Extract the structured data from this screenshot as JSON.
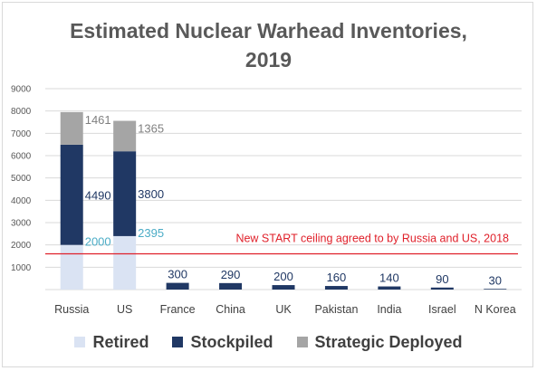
{
  "chart_data": {
    "type": "bar",
    "stacked": true,
    "title": "Estimated Nuclear Warhead Inventories, 2019",
    "title_lines": [
      "Estimated Nuclear Warhead Inventories,",
      "2019"
    ],
    "categories": [
      "Russia",
      "US",
      "France",
      "China",
      "UK",
      "Pakistan",
      "India",
      "Israel",
      "N Korea"
    ],
    "series": [
      {
        "name": "Retired",
        "color": "#dae3f3",
        "label_color": "#4bacc6",
        "values": [
          2000,
          2395,
          0,
          0,
          0,
          0,
          0,
          0,
          0
        ]
      },
      {
        "name": "Stockpiled",
        "color": "#203864",
        "label_color": "#203864",
        "values": [
          4490,
          3800,
          300,
          290,
          200,
          160,
          140,
          90,
          30
        ]
      },
      {
        "name": "Strategic Deployed",
        "color": "#a5a5a5",
        "label_color": "#7f7f7f",
        "values": [
          1461,
          1365,
          0,
          0,
          0,
          0,
          0,
          0,
          0
        ]
      }
    ],
    "ylim": [
      0,
      9000
    ],
    "yticks": [
      1000,
      2000,
      3000,
      4000,
      5000,
      6000,
      7000,
      8000,
      9000
    ],
    "grid": true,
    "legend_position": "bottom",
    "reference_line": {
      "value": 1600,
      "label": "New START ceiling agreed to by Russia and US, 2018",
      "color": "#e0202a"
    },
    "xlabel": "",
    "ylabel": ""
  }
}
